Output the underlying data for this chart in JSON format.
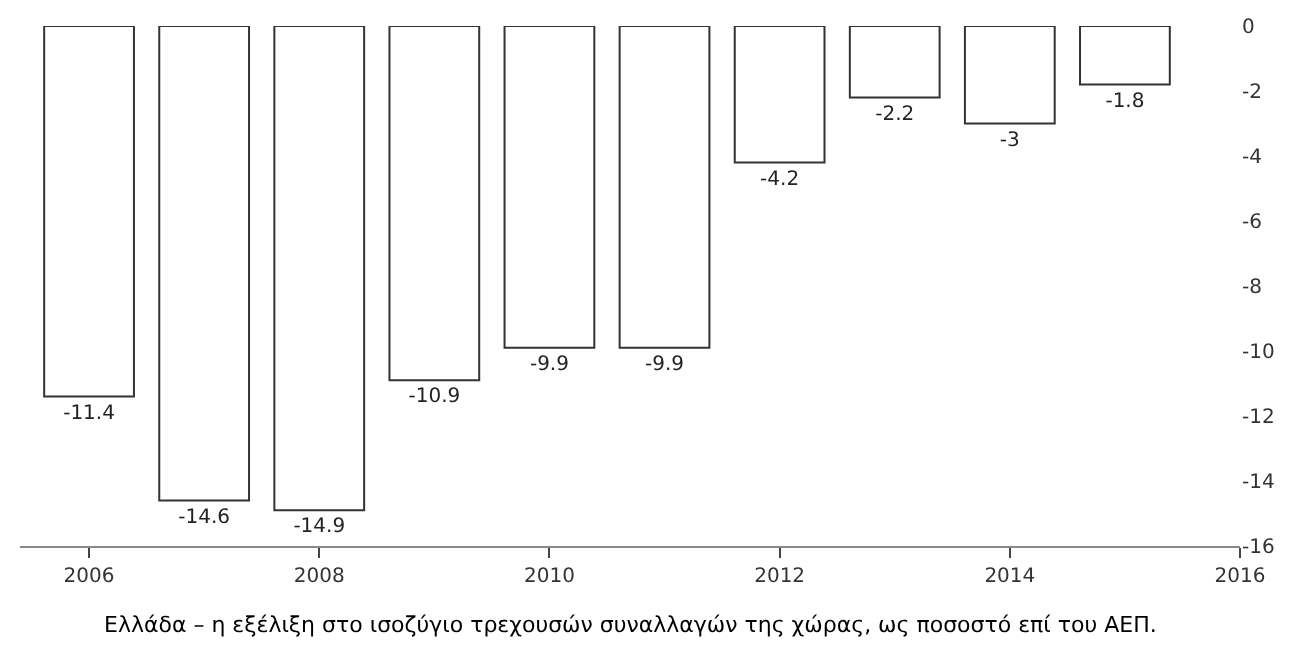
{
  "chart_data": {
    "type": "bar",
    "x": [
      2006,
      2007,
      2008,
      2009,
      2010,
      2011,
      2012,
      2013,
      2014,
      2015
    ],
    "values": [
      -11.4,
      -14.6,
      -14.9,
      -10.9,
      -9.9,
      -9.9,
      -4.2,
      -2.2,
      -3,
      -1.8
    ],
    "color": "#ffffff",
    "data_labels": true,
    "xlim": [
      2005.4,
      2016
    ],
    "xticks": [
      2006,
      2008,
      2010,
      2012,
      2014,
      2016
    ],
    "ylim": [
      -16,
      0
    ],
    "yticks": [
      0,
      -2,
      -4,
      -6,
      -8,
      -10,
      -12,
      -14,
      -16
    ],
    "legend": false,
    "annotations": [
      "Ελλάδα – η εξέλιξη στο ισοζύγιο τρεχουσών συναλλαγών της χώρας, ως ποσοστό επί του ΑΕΠ."
    ]
  }
}
